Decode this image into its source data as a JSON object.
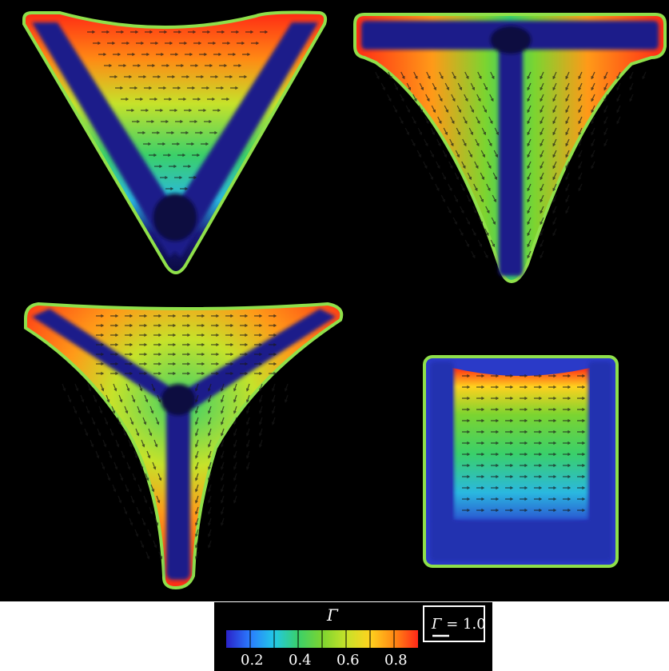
{
  "panels": [
    {
      "shape": "V-frame"
    },
    {
      "shape": "T-frame"
    },
    {
      "shape": "Y-frame"
    },
    {
      "shape": "U-frame"
    }
  ],
  "colorbar": {
    "title": "Γ",
    "ticks": [
      "0.2",
      "0.4",
      "0.6",
      "0.8"
    ],
    "stops": [
      "#2a22c8",
      "#2a7cff",
      "#22c8e6",
      "#3ad06a",
      "#7cd430",
      "#c6e22a",
      "#ffd21e",
      "#ff8a14",
      "#ff2818"
    ]
  },
  "scale_reference": {
    "symbol": "Γ",
    "text": " = 1.0"
  },
  "colors": {
    "frame": "#1a1a7a",
    "halo": "#3aa0ff",
    "edge": "#8fe04a",
    "background": "#000000"
  },
  "icons": [
    "flow-arrow"
  ]
}
